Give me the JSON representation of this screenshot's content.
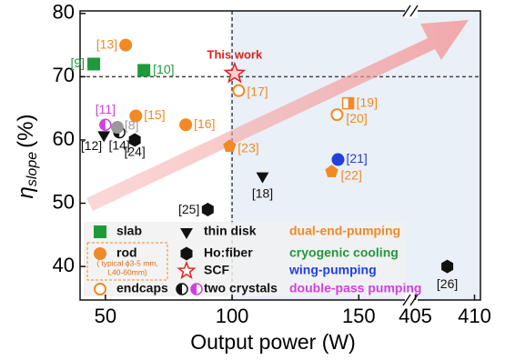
{
  "chart_data": {
    "type": "scatter",
    "xlabel": "Output power (W)",
    "ylabel": {
      "main": "η",
      "sub": "slope",
      "unit": "(%)"
    },
    "xlim": [
      40,
      170
    ],
    "xticks": [
      50,
      100,
      150
    ],
    "x2lim": [
      404.5,
      410.5
    ],
    "x2ticks": [
      405,
      410
    ],
    "ylim": [
      34.7,
      80.4
    ],
    "yticks": [
      40,
      50,
      60,
      70,
      80
    ],
    "reference_lines": {
      "x": 100,
      "y": 70
    },
    "points": [
      {
        "label": "[13]",
        "x": 58,
        "y": 75,
        "marker": "circle",
        "color": "#f08a24"
      },
      {
        "label": "[9]",
        "x": 45.4,
        "y": 72,
        "marker": "square",
        "color": "#1f9a3a"
      },
      {
        "label": "[10]",
        "x": 65.2,
        "y": 71,
        "marker": "square",
        "color": "#1f9a3a"
      },
      {
        "label": "This work",
        "x": 101,
        "y": 70.5,
        "marker": "star",
        "color": "#e02020"
      },
      {
        "label": "[17]",
        "x": 102.6,
        "y": 67.8,
        "marker": "circle-open",
        "color": "#f08a24"
      },
      {
        "label": "[11]",
        "x": 50,
        "y": 62.4,
        "marker": "half-circle",
        "color": "#d040e0"
      },
      {
        "label": "[12]",
        "x": 49.4,
        "y": 60.8,
        "marker": "triangle-down",
        "color": "#111111"
      },
      {
        "label": "[14]",
        "x": 55.5,
        "y": 61.2,
        "marker": "half-circle",
        "color": "#111111"
      },
      {
        "label": "[8]",
        "x": 54.7,
        "y": 62,
        "marker": "circle",
        "color": "#999999"
      },
      {
        "label": "[15]",
        "x": 62,
        "y": 63.8,
        "marker": "circle",
        "color": "#f08a24"
      },
      {
        "label": "[24]",
        "x": 61.6,
        "y": 60,
        "marker": "hexagon",
        "color": "#111111"
      },
      {
        "label": "[16]",
        "x": 81.7,
        "y": 62.4,
        "marker": "circle",
        "color": "#f08a24"
      },
      {
        "label": "[23]",
        "x": 99,
        "y": 59,
        "marker": "pentagon",
        "color": "#f08a24"
      },
      {
        "label": "[18]",
        "x": 112,
        "y": 54.3,
        "marker": "triangle-down",
        "color": "#111111"
      },
      {
        "label": "[25]",
        "x": 90.4,
        "y": 49,
        "marker": "hexagon",
        "color": "#111111"
      },
      {
        "label": "[19]",
        "x": 145.8,
        "y": 65.8,
        "marker": "square-half",
        "color": "#f08a24"
      },
      {
        "label": "[20]",
        "x": 141.4,
        "y": 64,
        "marker": "circle-open",
        "color": "#f08a24"
      },
      {
        "label": "[21]",
        "x": 141.8,
        "y": 56.9,
        "marker": "circle",
        "color": "#2040e0"
      },
      {
        "label": "[22]",
        "x": 139.3,
        "y": 55,
        "marker": "pentagon",
        "color": "#f08a24"
      },
      {
        "label": "[26]",
        "x": 407.7,
        "y": 40,
        "marker": "hexagon",
        "color": "#111111",
        "axis": "x2"
      }
    ],
    "legend": [
      {
        "label": "slab",
        "marker": "square",
        "color": "#1f9a3a"
      },
      {
        "label": "rod",
        "marker": "circle",
        "color": "#f08a24"
      },
      {
        "label": "endcaps",
        "marker": "circle-open",
        "color": "#f08a24"
      },
      {
        "label": "thin disk",
        "marker": "triangle-down",
        "color": "#111111"
      },
      {
        "label": "Ho:fiber",
        "marker": "hexagon",
        "color": "#111111"
      },
      {
        "label": "SCF",
        "marker": "star-open",
        "color": "#e02020"
      },
      {
        "label": "two crystals",
        "marker": "half-circle-pair",
        "color": "#d040e0"
      }
    ],
    "legend_note": [
      "( typical ϕ3-5 mm,",
      "L40-60mm)"
    ],
    "pumping_legend": [
      {
        "label": "dual-end-pumping",
        "color": "#f08a24"
      },
      {
        "label": "cryogenic cooling",
        "color": "#1f9a3a"
      },
      {
        "label": "wing-pumping",
        "color": "#2040e0"
      },
      {
        "label": "double-pass pumping",
        "color": "#d040e0"
      }
    ]
  }
}
